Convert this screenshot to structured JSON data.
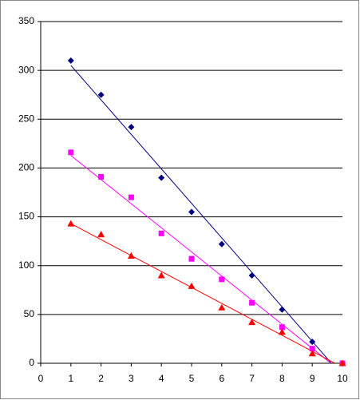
{
  "chart_data": {
    "type": "scatter",
    "x": [
      1,
      2,
      3,
      4,
      5,
      6,
      7,
      8,
      9,
      10
    ],
    "series": [
      {
        "color": "#000080",
        "marker": "diamond",
        "values": [
          310,
          275,
          242,
          190,
          155,
          122,
          90,
          55,
          22,
          0
        ]
      },
      {
        "color": "#ff00ff",
        "marker": "square",
        "values": [
          216,
          191,
          170,
          133,
          107,
          86,
          62,
          37,
          15,
          0
        ]
      },
      {
        "color": "#ff0000",
        "marker": "triangle",
        "values": [
          143,
          132,
          110,
          90,
          79,
          57,
          42,
          32,
          10,
          0
        ]
      }
    ],
    "trendline": "linear",
    "xlim": [
      0,
      10
    ],
    "xticks": [
      0,
      1,
      2,
      3,
      4,
      5,
      6,
      7,
      8,
      9,
      10
    ],
    "ylim": [
      0,
      350
    ],
    "yticks": [
      0,
      50,
      100,
      150,
      200,
      250,
      300,
      350
    ],
    "grid": true
  }
}
